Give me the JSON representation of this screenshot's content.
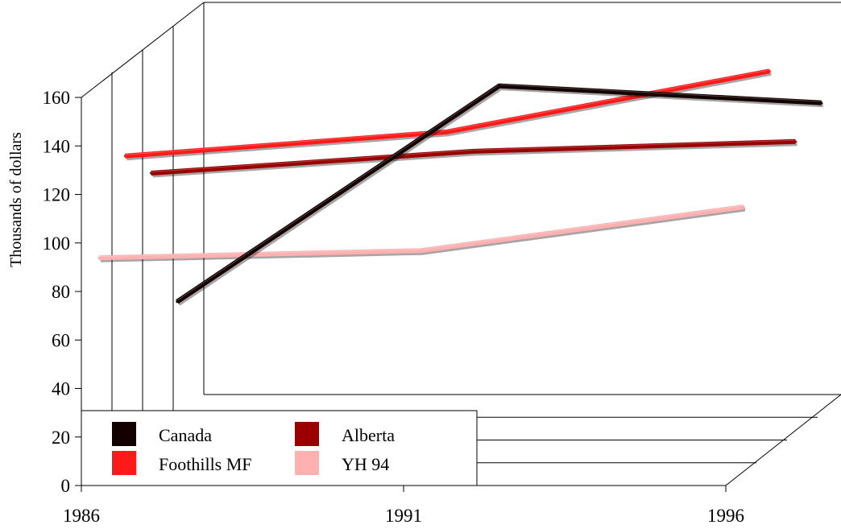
{
  "chart_data": {
    "type": "line",
    "title": "",
    "xlabel": "",
    "ylabel": "Thousands of dollars",
    "x": [
      1986,
      1991,
      1996
    ],
    "x_tick_labels": [
      "1986",
      "1991",
      "1996"
    ],
    "y_ticks": [
      0,
      20,
      40,
      60,
      80,
      100,
      120,
      140,
      160
    ],
    "ylim": [
      0,
      160
    ],
    "view": "3d-depth",
    "grid": true,
    "legend_position": "bottom-left",
    "series": [
      {
        "name": "Canada",
        "color": "#140000",
        "values": [
          47,
          136,
          129
        ]
      },
      {
        "name": "Alberta",
        "color": "#9a0000",
        "values": [
          108,
          117,
          121
        ]
      },
      {
        "name": "Foothills MF",
        "color": "#ff1a1a",
        "values": [
          123,
          133,
          158
        ]
      },
      {
        "name": "YH 94",
        "color": "#ffb0b0",
        "values": [
          89,
          92,
          110
        ]
      }
    ]
  }
}
